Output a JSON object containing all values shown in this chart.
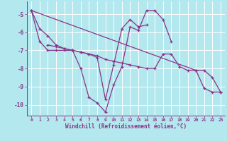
{
  "xlabel": "Windchill (Refroidissement éolien,°C)",
  "bg_color": "#b3e8ee",
  "line_color": "#883388",
  "xlim": [
    -0.5,
    23.5
  ],
  "ylim": [
    -10.6,
    -4.3
  ],
  "yticks": [
    -10,
    -9,
    -8,
    -7,
    -6,
    -5
  ],
  "xticks": [
    0,
    1,
    2,
    3,
    4,
    5,
    6,
    7,
    8,
    9,
    10,
    11,
    12,
    13,
    14,
    15,
    16,
    17,
    18,
    19,
    20,
    21,
    22,
    23
  ],
  "series": [
    [
      0,
      -4.8,
      1,
      -5.8,
      2,
      -6.2,
      3,
      -6.7,
      4,
      -6.9,
      5,
      -7.0,
      6,
      -8.0,
      7,
      -9.6,
      8,
      -9.9,
      9,
      -10.4,
      10,
      -8.9,
      11,
      -7.9,
      12,
      -5.7,
      13,
      -5.9,
      14,
      -4.8,
      15,
      -4.8,
      16,
      -5.3,
      17,
      -6.5
    ],
    [
      2,
      -6.7,
      3,
      -6.8,
      4,
      -6.9,
      5,
      -7.0,
      6,
      -7.1,
      7,
      -7.2,
      8,
      -7.4,
      9,
      -9.7,
      10,
      -7.8,
      11,
      -5.8,
      12,
      -5.3,
      13,
      -5.7,
      14,
      -5.6
    ],
    [
      0,
      -4.8,
      1,
      -6.5,
      2,
      -7.0,
      3,
      -7.0,
      4,
      -7.0,
      5,
      -7.0,
      6,
      -7.1,
      7,
      -7.2,
      8,
      -7.3,
      9,
      -7.5,
      10,
      -7.6,
      11,
      -7.7,
      12,
      -7.8,
      13,
      -7.9,
      14,
      -8.0,
      15,
      -8.0,
      16,
      -7.2,
      17,
      -7.2,
      18,
      -7.9,
      19,
      -8.1,
      20,
      -8.1,
      21,
      -9.1,
      22,
      -9.3,
      23,
      -9.3
    ],
    [
      0,
      -4.8,
      20,
      -8.1,
      21,
      -8.1,
      22,
      -8.5,
      23,
      -9.3
    ]
  ]
}
